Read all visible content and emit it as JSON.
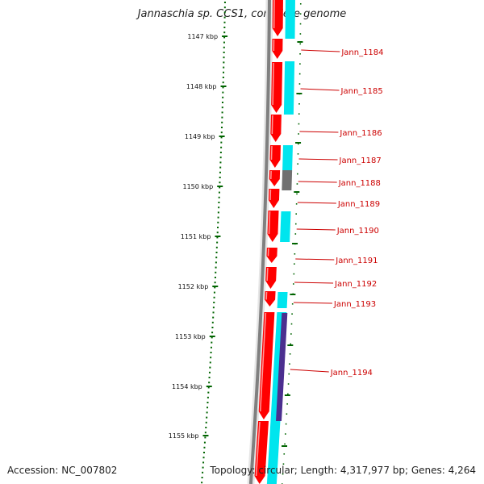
{
  "title": "Jannaschia sp. CCS1, complete genome",
  "accession": "Accession: NC_007802",
  "topology": "Topology: circular; Length: 4,317,977 bp; Genes: 4,264",
  "colors": {
    "backbone": "#808080",
    "forward_cds": "#ff0000",
    "reverse_cds": "#00e5ee",
    "label": "#cc0000",
    "tick": "#006400",
    "grey_feature": "#707070",
    "purple_feature": "#4b2f8f"
  },
  "scale_ticks": [
    {
      "label": "1147 kbp"
    },
    {
      "label": "1148 kbp"
    },
    {
      "label": "1149 kbp"
    },
    {
      "label": "1150 kbp"
    },
    {
      "label": "1151 kbp"
    },
    {
      "label": "1152 kbp"
    },
    {
      "label": "1153 kbp"
    },
    {
      "label": "1154 kbp"
    },
    {
      "label": "1155 kbp"
    }
  ],
  "gene_labels": [
    {
      "label": "Jann_1184"
    },
    {
      "label": "Jann_1185"
    },
    {
      "label": "Jann_1186"
    },
    {
      "label": "Jann_1187"
    },
    {
      "label": "Jann_1188"
    },
    {
      "label": "Jann_1189"
    },
    {
      "label": "Jann_1190"
    },
    {
      "label": "Jann_1191"
    },
    {
      "label": "Jann_1192"
    },
    {
      "label": "Jann_1193"
    },
    {
      "label": "Jann_1194"
    }
  ]
}
